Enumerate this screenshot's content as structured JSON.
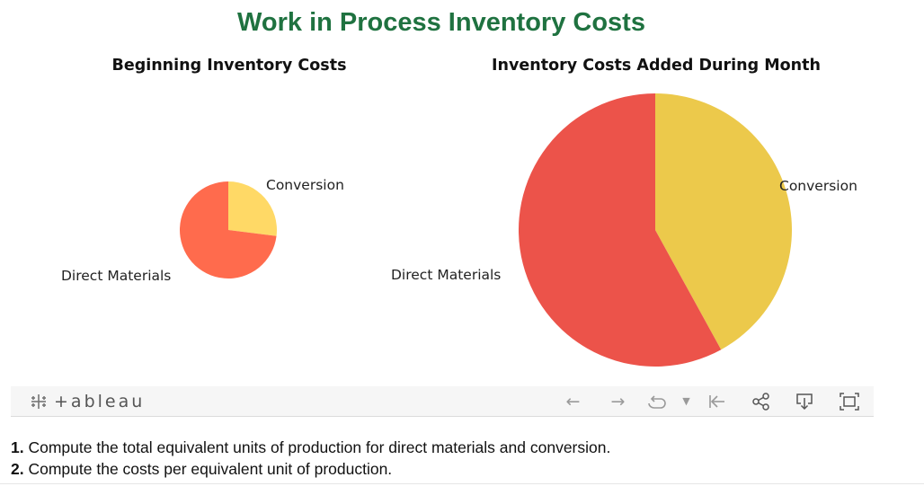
{
  "title": "Work in Process Inventory Costs",
  "chart_data": [
    {
      "type": "pie",
      "title": "Beginning Inventory Costs",
      "slices": [
        {
          "label": "Conversion",
          "value": 27,
          "color": "#ffd966"
        },
        {
          "label": "Direct Materials",
          "value": 73,
          "color": "#ff6b4d"
        }
      ]
    },
    {
      "type": "pie",
      "title": "Inventory Costs Added During Month",
      "slices": [
        {
          "label": "Conversion",
          "value": 42,
          "color": "#ecc94b"
        },
        {
          "label": "Direct Materials",
          "value": 58,
          "color": "#ec534a"
        }
      ]
    }
  ],
  "toolbar": {
    "logo_text": "+ableau",
    "icons": [
      "undo-arrow-icon",
      "redo-arrow-icon",
      "replay-icon",
      "dropdown-caret-icon",
      "revert-icon",
      "share-icon",
      "download-icon",
      "fullscreen-icon"
    ]
  },
  "questions": [
    {
      "num": "1.",
      "text": "Compute the total equivalent units of production for direct materials and conversion."
    },
    {
      "num": "2.",
      "text": "Compute the costs per equivalent unit of production."
    }
  ]
}
